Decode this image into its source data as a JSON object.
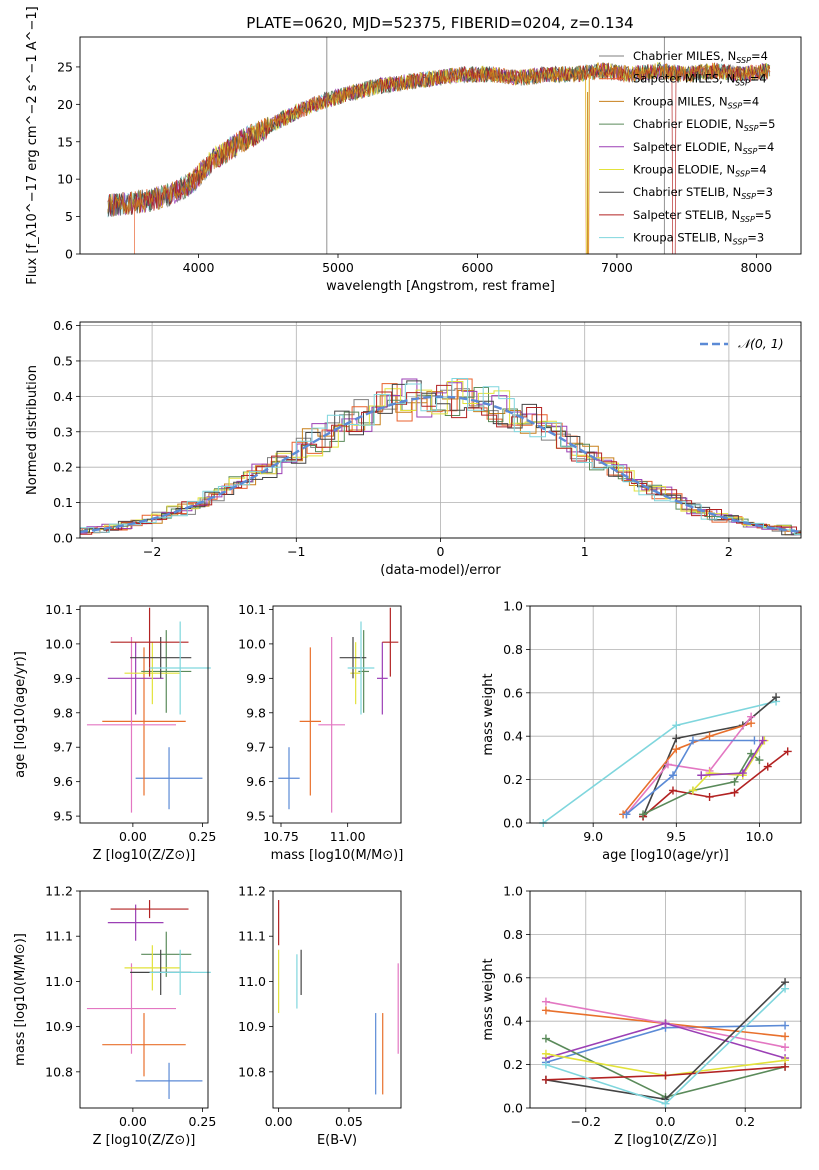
{
  "figure": {
    "title": "PLATE=0620, MJD=52375, FIBERID=0204, z=0.134"
  },
  "chart_data": [
    {
      "id": "spectrum",
      "type": "line",
      "xlabel": "wavelength [Angstrom, rest frame]",
      "ylabel": "Flux [f_λ10^−17 erg cm^−2 s^−1 A^−1]",
      "xlim": [
        3150,
        8320
      ],
      "ylim": [
        0,
        29
      ],
      "xticks": [
        4000,
        5000,
        6000,
        7000,
        8000
      ],
      "yticks": [
        0,
        5,
        10,
        15,
        20,
        25
      ],
      "grid": false,
      "legend": "top-right",
      "series": [
        {
          "name": "Chabrier MILES, N_SSP=4",
          "color": "#7f7f7f"
        },
        {
          "name": "Salpeter MILES, N_SSP=4",
          "color": "#e8602c"
        },
        {
          "name": "Kroupa MILES, N_SSP=4",
          "color": "#c8801c"
        },
        {
          "name": "Chabrier ELODIE, N_SSP=5",
          "color": "#5a8a5a"
        },
        {
          "name": "Salpeter ELODIE, N_SSP=4",
          "color": "#9b3fb5"
        },
        {
          "name": "Kroupa ELODIE, N_SSP=4",
          "color": "#e2e23a"
        },
        {
          "name": "Chabrier STELIB, N_SSP=3",
          "color": "#444444"
        },
        {
          "name": "Salpeter STELIB, N_SSP=5",
          "color": "#b22222"
        },
        {
          "name": "Kroupa STELIB, N_SSP=3",
          "color": "#7fd6dd"
        }
      ],
      "envelope": {
        "x": [
          3350,
          3500,
          3650,
          3800,
          3950,
          4100,
          4300,
          4500,
          4700,
          4900,
          5100,
          5300,
          5500,
          5700,
          5900,
          6100,
          6300,
          6500,
          6700,
          6900,
          7100,
          7300,
          7500,
          7700,
          7900,
          8100
        ],
        "y": [
          6.5,
          6.8,
          7.2,
          8.0,
          9.5,
          12.5,
          15.0,
          17.0,
          19.0,
          20.5,
          21.5,
          22.5,
          23.0,
          23.5,
          24.0,
          24.0,
          23.5,
          24.0,
          24.0,
          24.5,
          24.0,
          24.5,
          24.0,
          24.5,
          24.0,
          24.5
        ]
      }
    },
    {
      "id": "residuals",
      "type": "histogram",
      "xlabel": "(data-model)/error",
      "ylabel": "Normed distribution",
      "xlim": [
        -2.5,
        2.5
      ],
      "ylim": [
        0,
        0.61
      ],
      "xticks": [
        -2,
        -1,
        0,
        1,
        2
      ],
      "yticks": [
        0.0,
        0.1,
        0.2,
        0.3,
        0.4,
        0.5,
        0.6
      ],
      "grid": true,
      "legend": "top-right",
      "legend_label": "𝒩(0, 1)",
      "gaussian_color": "#5b8ad6"
    },
    {
      "id": "age_vs_Z",
      "type": "errorbar",
      "xlabel": "Z [log10(Z/Z⊙)]",
      "ylabel": "age [log10(age/yr)]",
      "xlim": [
        -0.19,
        0.27
      ],
      "ylim": [
        9.48,
        10.11
      ],
      "xticks": [
        0.0,
        0.25
      ],
      "yticks": [
        9.5,
        9.6,
        9.7,
        9.8,
        9.9,
        10.0,
        10.1
      ],
      "points": [
        {
          "x": 0.13,
          "xerr": 0.12,
          "y": 9.61,
          "yerr": 0.09,
          "color": "#5b8ad6"
        },
        {
          "x": 0.04,
          "xerr": 0.15,
          "y": 9.775,
          "yerr": 0.215,
          "color": "#e8702c"
        },
        {
          "x": -0.005,
          "xerr": 0.16,
          "y": 9.765,
          "yerr": 0.255,
          "color": "#e377c2"
        },
        {
          "x": 0.12,
          "xerr": 0.09,
          "y": 9.92,
          "yerr": 0.12,
          "color": "#5a8a5a"
        },
        {
          "x": 0.01,
          "xerr": 0.1,
          "y": 9.9,
          "yerr": 0.105,
          "color": "#9b3fb5"
        },
        {
          "x": 0.07,
          "xerr": 0.1,
          "y": 9.915,
          "yerr": 0.09,
          "color": "#e2e23a"
        },
        {
          "x": 0.1,
          "xerr": 0.11,
          "y": 9.96,
          "yerr": 0.06,
          "color": "#444444"
        },
        {
          "x": 0.06,
          "xerr": 0.14,
          "y": 10.005,
          "yerr": 0.1,
          "color": "#b22222"
        },
        {
          "x": 0.17,
          "xerr": 0.11,
          "y": 9.93,
          "yerr": 0.135,
          "color": "#7fd6dd"
        }
      ]
    },
    {
      "id": "age_vs_mass",
      "type": "errorbar",
      "xlabel": "mass [log10(M/M⊙)]",
      "ylabel": "",
      "xlim": [
        10.72,
        11.2
      ],
      "ylim": [
        9.48,
        10.11
      ],
      "xticks": [
        10.75,
        11.0
      ],
      "yticks": [
        9.5,
        9.6,
        9.7,
        9.8,
        9.9,
        10.0,
        10.1
      ],
      "points": [
        {
          "x": 10.78,
          "xerr": 0.04,
          "y": 9.61,
          "yerr": 0.09,
          "color": "#5b8ad6"
        },
        {
          "x": 10.86,
          "xerr": 0.04,
          "y": 9.775,
          "yerr": 0.215,
          "color": "#e8702c"
        },
        {
          "x": 10.94,
          "xerr": 0.05,
          "y": 9.765,
          "yerr": 0.255,
          "color": "#e377c2"
        },
        {
          "x": 11.06,
          "xerr": 0.02,
          "y": 9.92,
          "yerr": 0.12,
          "color": "#5a8a5a"
        },
        {
          "x": 11.13,
          "xerr": 0.02,
          "y": 9.9,
          "yerr": 0.105,
          "color": "#9b3fb5"
        },
        {
          "x": 11.03,
          "xerr": 0.02,
          "y": 9.915,
          "yerr": 0.09,
          "color": "#e2e23a"
        },
        {
          "x": 11.02,
          "xerr": 0.05,
          "y": 9.96,
          "yerr": 0.06,
          "color": "#444444"
        },
        {
          "x": 11.16,
          "xerr": 0.03,
          "y": 10.005,
          "yerr": 0.1,
          "color": "#b22222"
        },
        {
          "x": 11.05,
          "xerr": 0.05,
          "y": 9.93,
          "yerr": 0.135,
          "color": "#7fd6dd"
        }
      ]
    },
    {
      "id": "weight_vs_age",
      "type": "line",
      "xlabel": "age [log10(age/yr)]",
      "ylabel": "mass weight",
      "xlim": [
        8.62,
        10.25
      ],
      "ylim": [
        0,
        1.0
      ],
      "xticks": [
        9.0,
        9.5,
        10.0
      ],
      "yticks": [
        0.0,
        0.2,
        0.4,
        0.6,
        0.8,
        1.0
      ],
      "grid": true,
      "series": [
        {
          "color": "#7fd6dd",
          "x": [
            8.7,
            9.5,
            10.1
          ],
          "y": [
            0.0,
            0.45,
            0.56
          ]
        },
        {
          "color": "#444444",
          "x": [
            9.3,
            9.5,
            9.9,
            10.1
          ],
          "y": [
            0.03,
            0.39,
            0.45,
            0.58
          ]
        },
        {
          "color": "#e8702c",
          "x": [
            9.18,
            9.5,
            9.7,
            9.95
          ],
          "y": [
            0.04,
            0.34,
            0.4,
            0.46
          ]
        },
        {
          "color": "#e377c2",
          "x": [
            9.2,
            9.45,
            9.7,
            9.95
          ],
          "y": [
            0.04,
            0.27,
            0.24,
            0.49
          ]
        },
        {
          "color": "#5b8ad6",
          "x": [
            9.2,
            9.48,
            9.6,
            9.97
          ],
          "y": [
            0.04,
            0.22,
            0.38,
            0.38
          ]
        },
        {
          "color": "#b22222",
          "x": [
            9.3,
            9.48,
            9.7,
            9.85,
            10.05,
            10.17
          ],
          "y": [
            0.03,
            0.15,
            0.12,
            0.14,
            0.26,
            0.33
          ]
        },
        {
          "color": "#5a8a5a",
          "x": [
            9.3,
            9.6,
            9.85,
            9.95,
            10.0
          ],
          "y": [
            0.04,
            0.15,
            0.19,
            0.32,
            0.29
          ]
        },
        {
          "color": "#e2e23a",
          "x": [
            9.6,
            9.7,
            9.9,
            10.03
          ],
          "y": [
            0.15,
            0.23,
            0.22,
            0.38
          ]
        },
        {
          "color": "#9b3fb5",
          "x": [
            9.65,
            9.9,
            10.02
          ],
          "y": [
            0.22,
            0.23,
            0.38
          ]
        }
      ]
    },
    {
      "id": "mass_vs_Z",
      "type": "errorbar",
      "xlabel": "Z [log10(Z/Z⊙)]",
      "ylabel": "mass [log10(M/M⊙)]",
      "xlim": [
        -0.19,
        0.27
      ],
      "ylim": [
        10.72,
        11.2
      ],
      "xticks": [
        0.0,
        0.25
      ],
      "yticks": [
        10.8,
        10.9,
        11.0,
        11.1,
        11.2
      ],
      "points": [
        {
          "x": 0.13,
          "xerr": 0.12,
          "y": 10.78,
          "yerr": 0.04,
          "color": "#5b8ad6"
        },
        {
          "x": 0.04,
          "xerr": 0.15,
          "y": 10.86,
          "yerr": 0.07,
          "color": "#e8702c"
        },
        {
          "x": -0.005,
          "xerr": 0.16,
          "y": 10.94,
          "yerr": 0.1,
          "color": "#e377c2"
        },
        {
          "x": 0.12,
          "xerr": 0.09,
          "y": 11.06,
          "yerr": 0.05,
          "color": "#5a8a5a"
        },
        {
          "x": 0.01,
          "xerr": 0.1,
          "y": 11.13,
          "yerr": 0.04,
          "color": "#9b3fb5"
        },
        {
          "x": 0.07,
          "xerr": 0.1,
          "y": 11.03,
          "yerr": 0.05,
          "color": "#e2e23a"
        },
        {
          "x": 0.1,
          "xerr": 0.11,
          "y": 11.02,
          "yerr": 0.05,
          "color": "#444444"
        },
        {
          "x": 0.06,
          "xerr": 0.14,
          "y": 11.16,
          "yerr": 0.02,
          "color": "#b22222"
        },
        {
          "x": 0.17,
          "xerr": 0.11,
          "y": 11.02,
          "yerr": 0.05,
          "color": "#7fd6dd"
        }
      ]
    },
    {
      "id": "mass_vs_ebv",
      "type": "errorbar",
      "xlabel": "E(B-V)",
      "ylabel": "",
      "xlim": [
        -0.004,
        0.087
      ],
      "ylim": [
        10.72,
        11.2
      ],
      "xticks": [
        0.0,
        0.05
      ],
      "yticks": [
        10.8,
        10.9,
        11.0,
        11.1,
        11.2
      ],
      "points": [
        {
          "x": 0.0,
          "xerr": 0,
          "y": 11.13,
          "yerr": 0.05,
          "color": "#b22222"
        },
        {
          "x": 0.0,
          "xerr": 0,
          "y": 11.0,
          "yerr": 0.07,
          "color": "#e2e23a"
        },
        {
          "x": 0.013,
          "xerr": 0,
          "y": 11.0,
          "yerr": 0.06,
          "color": "#7fd6dd"
        },
        {
          "x": 0.016,
          "xerr": 0,
          "y": 11.02,
          "yerr": 0.05,
          "color": "#444444"
        },
        {
          "x": 0.069,
          "xerr": 0,
          "y": 10.84,
          "yerr": 0.09,
          "color": "#5b8ad6"
        },
        {
          "x": 0.074,
          "xerr": 0,
          "y": 10.84,
          "yerr": 0.09,
          "color": "#e8702c"
        },
        {
          "x": 0.085,
          "xerr": 0,
          "y": 10.94,
          "yerr": 0.1,
          "color": "#e377c2"
        }
      ]
    },
    {
      "id": "weight_vs_Z",
      "type": "line",
      "xlabel": "Z [log10(Z/Z⊙)]",
      "ylabel": "mass weight",
      "xlim": [
        -0.34,
        0.34
      ],
      "ylim": [
        0,
        1.0
      ],
      "xticks": [
        -0.2,
        0.0,
        0.2
      ],
      "yticks": [
        0.0,
        0.2,
        0.4,
        0.6,
        0.8,
        1.0
      ],
      "grid": true,
      "series": [
        {
          "color": "#5b8ad6",
          "x": [
            -0.3,
            0.0,
            0.3
          ],
          "y": [
            0.21,
            0.37,
            0.38
          ]
        },
        {
          "color": "#e8702c",
          "x": [
            -0.3,
            0.0,
            0.3
          ],
          "y": [
            0.45,
            0.39,
            0.33
          ]
        },
        {
          "color": "#e377c2",
          "x": [
            -0.3,
            0.0,
            0.3
          ],
          "y": [
            0.49,
            0.39,
            0.28
          ]
        },
        {
          "color": "#5a8a5a",
          "x": [
            -0.3,
            0.0,
            0.3
          ],
          "y": [
            0.32,
            0.05,
            0.19
          ]
        },
        {
          "color": "#9b3fb5",
          "x": [
            -0.3,
            0.0,
            0.3
          ],
          "y": [
            0.23,
            0.39,
            0.23
          ]
        },
        {
          "color": "#e2e23a",
          "x": [
            -0.3,
            0.0,
            0.3
          ],
          "y": [
            0.25,
            0.15,
            0.22
          ]
        },
        {
          "color": "#444444",
          "x": [
            -0.3,
            0.0,
            0.3
          ],
          "y": [
            0.13,
            0.04,
            0.58
          ]
        },
        {
          "color": "#b22222",
          "x": [
            -0.3,
            0.0,
            0.3
          ],
          "y": [
            0.13,
            0.15,
            0.19
          ]
        },
        {
          "color": "#7fd6dd",
          "x": [
            -0.3,
            0.0,
            0.3
          ],
          "y": [
            0.2,
            0.02,
            0.55
          ]
        }
      ]
    }
  ]
}
